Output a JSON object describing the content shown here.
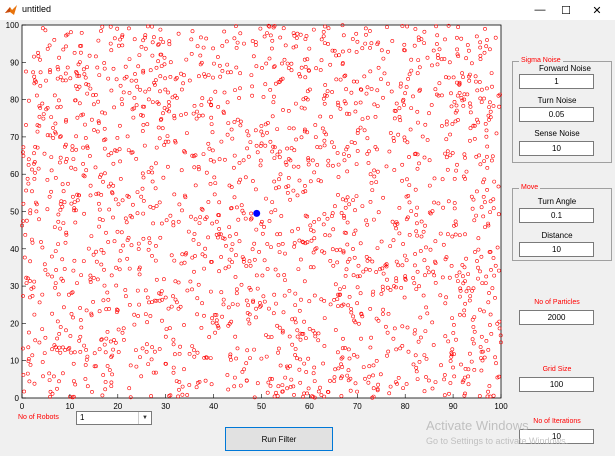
{
  "window": {
    "title": "untitled",
    "minimize_glyph": "—",
    "maximize_glyph": "☐",
    "close_glyph": "✕"
  },
  "plot": {
    "x_ticks": [
      "0",
      "10",
      "20",
      "30",
      "40",
      "50",
      "60",
      "70",
      "80",
      "90",
      "100"
    ],
    "y_ticks": [
      "0",
      "10",
      "20",
      "30",
      "40",
      "50",
      "60",
      "70",
      "80",
      "90",
      "100"
    ],
    "particle_color": "#ff0000",
    "robot_color": "#0000ff",
    "robot_position": {
      "x": 49,
      "y": 49.5
    },
    "particle_count_displayed": 2000
  },
  "sigma_noise": {
    "title": "Sigma Noise",
    "forward_label": "Forward Noise",
    "forward_value": "1",
    "turn_label": "Turn Noise",
    "turn_value": "0.05",
    "sense_label": "Sense Noise",
    "sense_value": "10"
  },
  "move": {
    "title": "Move",
    "turn_angle_label": "Turn Angle",
    "turn_angle_value": "0.1",
    "distance_label": "Distance",
    "distance_value": "10"
  },
  "particles": {
    "label": "No of Particles",
    "value": "2000"
  },
  "grid": {
    "label": "Grid Size",
    "value": "100"
  },
  "iterations": {
    "label": "No of Iterations",
    "value": "10"
  },
  "robots": {
    "label": "No of Robots",
    "value": "1"
  },
  "run_button_label": "Run Filter",
  "watermark": {
    "line1": "Activate Windows",
    "line2": "Go to Settings to activate Windows."
  }
}
